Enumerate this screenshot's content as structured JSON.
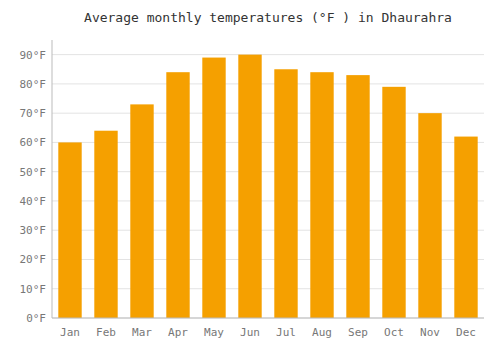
{
  "chart_data": {
    "type": "bar",
    "title": "Average monthly temperatures (°F ) in Dhaurahra",
    "categories": [
      "Jan",
      "Feb",
      "Mar",
      "Apr",
      "May",
      "Jun",
      "Jul",
      "Aug",
      "Sep",
      "Oct",
      "Nov",
      "Dec"
    ],
    "values": [
      60,
      64,
      73,
      84,
      89,
      90,
      85,
      84,
      83,
      79,
      70,
      62
    ],
    "color": "#F5A000",
    "ylim": [
      0,
      95
    ],
    "yticks": [
      {
        "value": 0,
        "label": "0°F"
      },
      {
        "value": 10,
        "label": "10°F"
      },
      {
        "value": 20,
        "label": "20°F"
      },
      {
        "value": 30,
        "label": "30°F"
      },
      {
        "value": 40,
        "label": "40°F"
      },
      {
        "value": 50,
        "label": "50°F"
      },
      {
        "value": 60,
        "label": "60°F"
      },
      {
        "value": 70,
        "label": "70°F"
      },
      {
        "value": 80,
        "label": "80°F"
      },
      {
        "value": 90,
        "label": "90°F"
      }
    ],
    "grid": true
  }
}
